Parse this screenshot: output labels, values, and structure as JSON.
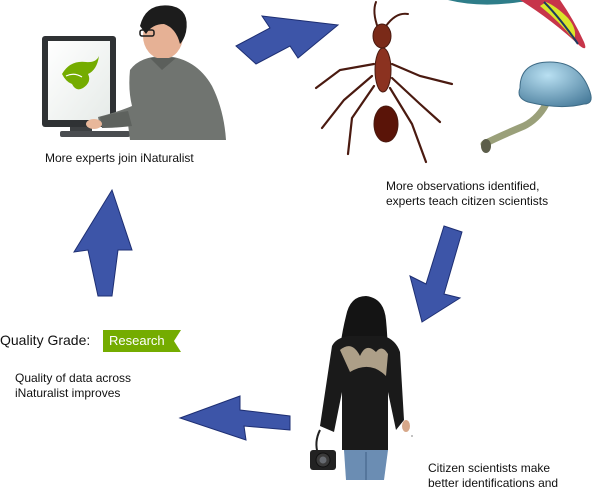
{
  "captions": {
    "experts_join": "More experts join iNaturalist",
    "identified_line1": "More observations identified,",
    "identified_line2": "experts teach citizen scientists",
    "quality_line1": "Quality of data across",
    "quality_line2": "iNaturalist improves",
    "citizens_line1": "Citizen scientists make",
    "citizens_line2": "better identifications and"
  },
  "quality_grade": {
    "label": "Quality Grade:",
    "badge": "Research",
    "badge_color": "#74ac00"
  },
  "colors": {
    "arrow": "#3d55a8",
    "arrow_edge": "#1e2f73",
    "leaf_logo": "#74ac00"
  },
  "icons": [
    "computer-expert-illustration",
    "ant-illustration",
    "fish-illustration",
    "mushroom-illustration",
    "citizen-scientist-illustration",
    "camera-icon",
    "inaturalist-bird-logo"
  ]
}
